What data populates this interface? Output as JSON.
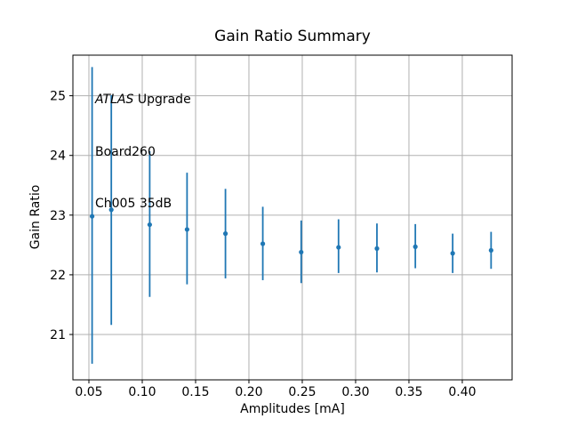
{
  "chart_data": {
    "type": "scatter",
    "title": "Gain Ratio Summary",
    "xlabel": "Amplitudes [mA]",
    "ylabel": "Gain Ratio",
    "grid": true,
    "legend": false,
    "xlim": [
      0.035,
      0.4467
    ],
    "ylim": [
      20.24,
      25.68
    ],
    "xticks": [
      {
        "v": 0.05,
        "label": "0.05"
      },
      {
        "v": 0.1,
        "label": "0.10"
      },
      {
        "v": 0.15,
        "label": "0.15"
      },
      {
        "v": 0.2,
        "label": "0.20"
      },
      {
        "v": 0.25,
        "label": "0.25"
      },
      {
        "v": 0.3,
        "label": "0.30"
      },
      {
        "v": 0.35,
        "label": "0.35"
      },
      {
        "v": 0.4,
        "label": "0.40"
      }
    ],
    "yticks": [
      {
        "v": 21,
        "label": "21"
      },
      {
        "v": 22,
        "label": "22"
      },
      {
        "v": 23,
        "label": "23"
      },
      {
        "v": 24,
        "label": "24"
      },
      {
        "v": 25,
        "label": "25"
      }
    ],
    "series": [
      {
        "name": "gain-ratio-errorbars",
        "color": "#1f77b4",
        "marker": "point",
        "points": [
          {
            "x": 0.053,
            "y": 22.98,
            "err_up": 2.5,
            "err_down": 2.47
          },
          {
            "x": 0.071,
            "y": 23.09,
            "err_up": 1.92,
            "err_down": 1.93
          },
          {
            "x": 0.107,
            "y": 22.84,
            "err_up": 1.23,
            "err_down": 1.21
          },
          {
            "x": 0.142,
            "y": 22.76,
            "err_up": 0.95,
            "err_down": 0.92
          },
          {
            "x": 0.178,
            "y": 22.69,
            "err_up": 0.75,
            "err_down": 0.75
          },
          {
            "x": 0.213,
            "y": 22.52,
            "err_up": 0.62,
            "err_down": 0.61
          },
          {
            "x": 0.249,
            "y": 22.38,
            "err_up": 0.53,
            "err_down": 0.52
          },
          {
            "x": 0.284,
            "y": 22.46,
            "err_up": 0.47,
            "err_down": 0.43
          },
          {
            "x": 0.32,
            "y": 22.44,
            "err_up": 0.42,
            "err_down": 0.4
          },
          {
            "x": 0.356,
            "y": 22.47,
            "err_up": 0.38,
            "err_down": 0.36
          },
          {
            "x": 0.391,
            "y": 22.36,
            "err_up": 0.33,
            "err_down": 0.33
          },
          {
            "x": 0.427,
            "y": 22.41,
            "err_up": 0.31,
            "err_down": 0.31
          }
        ]
      }
    ],
    "annotation": {
      "line1_italic": "ATLAS",
      "line1_rest": " Upgrade",
      "line2": "Board260",
      "line3": "Ch005 35dB"
    },
    "colors": {
      "series": "#1f77b4",
      "grid": "#b0b0b0",
      "spine": "#000000",
      "text": "#000000",
      "background": "#ffffff"
    }
  }
}
